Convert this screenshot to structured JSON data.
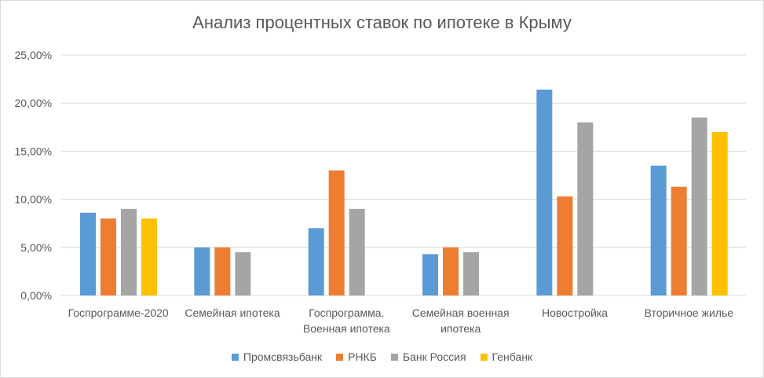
{
  "colors": {
    "series": [
      "#5b9bd5",
      "#ed7d31",
      "#a5a5a5",
      "#ffc000"
    ],
    "grid": "#d9d9d9",
    "text": "#595959"
  },
  "chart_data": {
    "type": "bar",
    "title": "Анализ процентных ставок по ипотеке в Крыму",
    "xlabel": "",
    "ylabel": "",
    "ylim": [
      0,
      25
    ],
    "yticks": [
      "0,00%",
      "5,00%",
      "10,00%",
      "15,00%",
      "20,00%",
      "25,00%"
    ],
    "grid": true,
    "legend_position": "bottom",
    "categories": [
      [
        "Госпрограмме-2020"
      ],
      [
        "Семейная ипотека"
      ],
      [
        "Госпрограмма.",
        "Военная ипотека"
      ],
      [
        "Семейная военная",
        "ипотека"
      ],
      [
        "Новостройка"
      ],
      [
        "Вторичное жилье"
      ]
    ],
    "series": [
      {
        "name": "Промсвязьбанк",
        "values": [
          8.6,
          5.0,
          7.0,
          4.3,
          21.4,
          13.5
        ]
      },
      {
        "name": "РНКБ",
        "values": [
          8.0,
          5.0,
          13.0,
          5.0,
          10.3,
          11.3
        ]
      },
      {
        "name": "Банк Россия",
        "values": [
          9.0,
          4.5,
          9.0,
          4.5,
          18.0,
          18.5
        ]
      },
      {
        "name": "Генбанк",
        "values": [
          8.0,
          null,
          null,
          null,
          null,
          17.0
        ]
      }
    ]
  }
}
